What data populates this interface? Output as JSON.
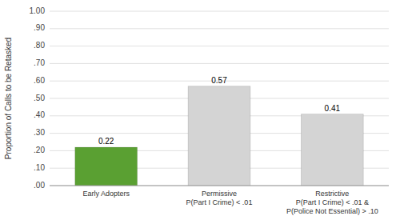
{
  "chart_data": {
    "type": "bar",
    "categories": [
      "Early Adopters",
      "Permissive\nP(Part I Crime) < .01",
      "Restrictive\nP(Part I Crime) < .01 &\nP(Police Not Essential) > .10"
    ],
    "values": [
      0.22,
      0.57,
      0.41
    ],
    "colors": [
      "#5aA032",
      "#d4d4d4",
      "#d4d4d4"
    ],
    "ylabel": "Proportion of Calls to be Retasked",
    "ylim": [
      0.0,
      1.0
    ],
    "yticks": [
      {
        "value": 0.0,
        "label": ".00"
      },
      {
        "value": 0.1,
        "label": ".10"
      },
      {
        "value": 0.2,
        "label": ".20"
      },
      {
        "value": 0.3,
        "label": ".30"
      },
      {
        "value": 0.4,
        "label": ".40"
      },
      {
        "value": 0.5,
        "label": ".50"
      },
      {
        "value": 0.6,
        "label": ".60"
      },
      {
        "value": 0.7,
        "label": ".70"
      },
      {
        "value": 0.8,
        "label": ".80"
      },
      {
        "value": 0.9,
        "label": ".90"
      },
      {
        "value": 1.0,
        "label": "1.00"
      }
    ],
    "grid": true,
    "data_labels": true
  }
}
